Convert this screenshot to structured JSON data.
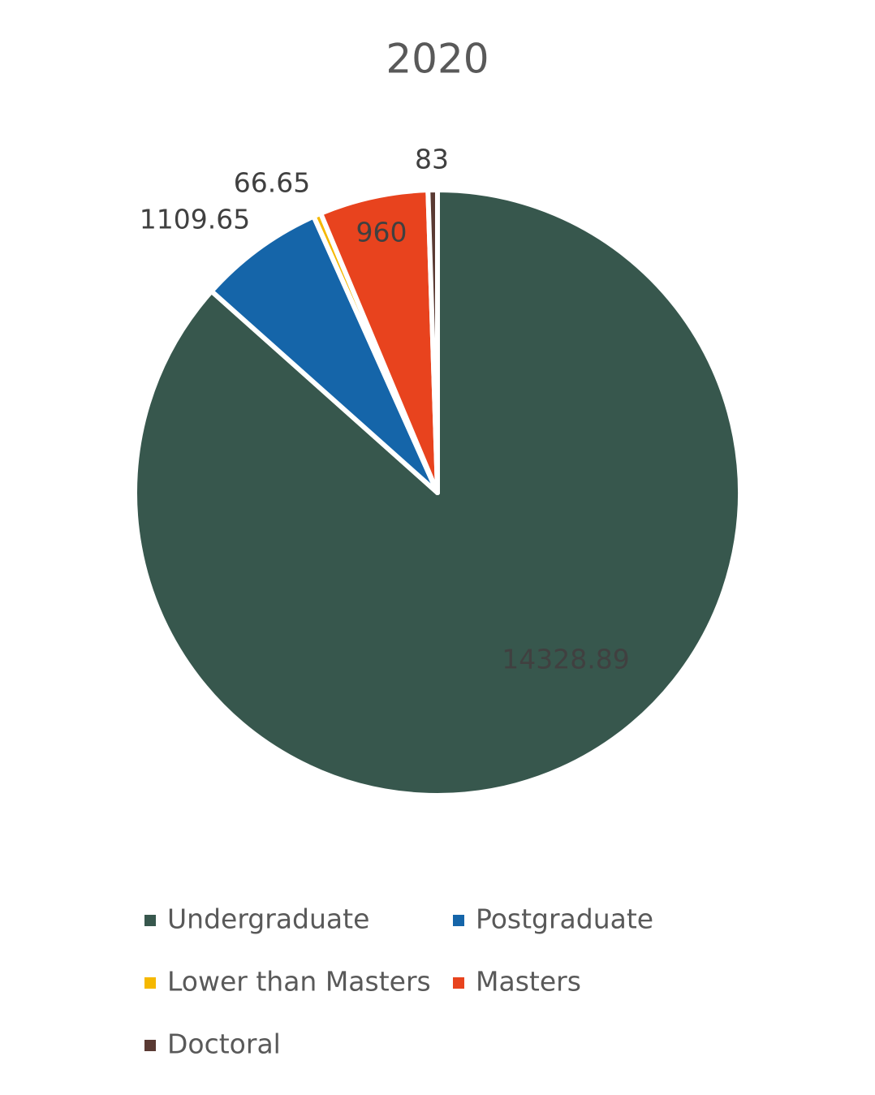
{
  "chart_data": {
    "type": "pie",
    "title": "2020",
    "categories": [
      "Undergraduate",
      "Postgraduate",
      "Lower than Masters",
      "Masters",
      "Doctoral"
    ],
    "values": [
      14328.89,
      1109.65,
      66.65,
      960,
      83
    ],
    "colors": [
      "#37574d",
      "#1565a9",
      "#f5b800",
      "#e8431e",
      "#5a3a33"
    ],
    "legend": "bottom"
  }
}
